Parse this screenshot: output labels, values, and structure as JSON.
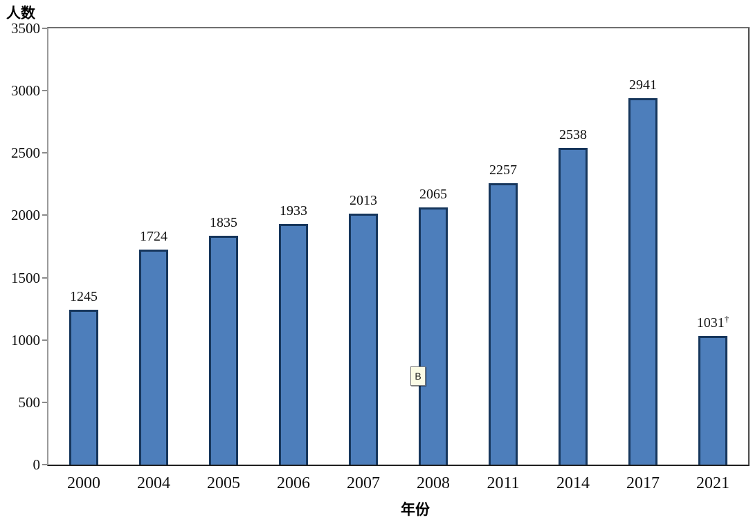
{
  "chart_data": {
    "type": "bar",
    "title": "",
    "ylabel": "人数",
    "xlabel": "年份",
    "categories": [
      "2000",
      "2004",
      "2005",
      "2006",
      "2007",
      "2008",
      "2011",
      "2014",
      "2017",
      "2021"
    ],
    "values": [
      1245,
      1724,
      1835,
      1933,
      2013,
      2065,
      2257,
      2538,
      2941,
      1031
    ],
    "bars": [
      {
        "category": "2000",
        "value": 1245,
        "label": "1245",
        "sup": ""
      },
      {
        "category": "2004",
        "value": 1724,
        "label": "1724",
        "sup": ""
      },
      {
        "category": "2005",
        "value": 1835,
        "label": "1835",
        "sup": ""
      },
      {
        "category": "2006",
        "value": 1933,
        "label": "1933",
        "sup": ""
      },
      {
        "category": "2007",
        "value": 2013,
        "label": "2013",
        "sup": ""
      },
      {
        "category": "2008",
        "value": 2065,
        "label": "2065",
        "sup": ""
      },
      {
        "category": "2011",
        "value": 2257,
        "label": "2257",
        "sup": ""
      },
      {
        "category": "2014",
        "value": 2538,
        "label": "2538",
        "sup": ""
      },
      {
        "category": "2017",
        "value": 2941,
        "label": "2941",
        "sup": ""
      },
      {
        "category": "2021",
        "value": 1031,
        "label": "1031",
        "sup": "†"
      }
    ],
    "ylim": [
      0,
      3500
    ],
    "yticks": [
      0,
      500,
      1000,
      1500,
      2000,
      2500,
      3000,
      3500
    ],
    "grid": false,
    "legend": null,
    "bar_fill": "#4D7EBB",
    "bar_border": "#16365C",
    "axis_color": "#808080",
    "text_color": "#111111"
  },
  "annotation": {
    "text": "B"
  }
}
